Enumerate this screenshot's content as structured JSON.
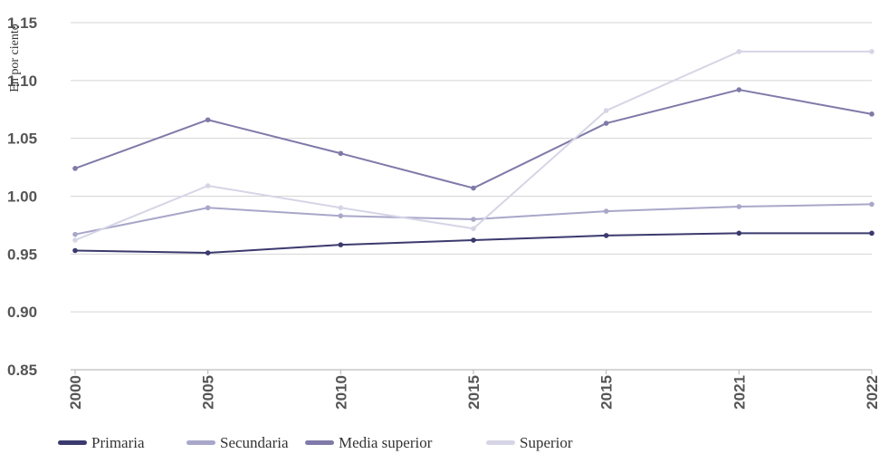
{
  "chart_data": {
    "type": "line",
    "ylabel": "En por ciento",
    "xlabel": "",
    "categories": [
      "2000",
      "2005",
      "2010",
      "2015",
      "2015",
      "2021",
      "2022"
    ],
    "ylim": [
      0.85,
      1.15
    ],
    "yticks": [
      "0.85",
      "0.90",
      "0.95",
      "1.00",
      "1.05",
      "1.10",
      "1.15"
    ],
    "grid": true,
    "legend_position": "bottom-left",
    "series": [
      {
        "name": "Primaria",
        "color": "#3b3a6e",
        "values": [
          0.953,
          0.951,
          0.958,
          0.962,
          0.966,
          0.968,
          0.968
        ]
      },
      {
        "name": "Secundaria",
        "color": "#a9a7c9",
        "values": [
          0.967,
          0.99,
          0.983,
          0.98,
          0.987,
          0.991,
          0.993
        ]
      },
      {
        "name": "Media superior",
        "color": "#7f7aa8",
        "values": [
          1.024,
          1.066,
          1.037,
          1.007,
          1.063,
          1.092,
          1.071
        ]
      },
      {
        "name": "Superior",
        "color": "#d6d5e6",
        "values": [
          0.962,
          1.009,
          0.99,
          0.972,
          1.074,
          1.125,
          1.125
        ]
      }
    ]
  }
}
